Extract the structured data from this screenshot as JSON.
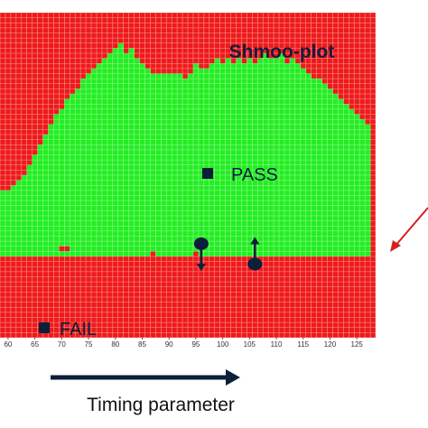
{
  "chart_data": {
    "type": "heatmap",
    "title": "Shmoo-plot",
    "xlabel": "Timing parameter",
    "legend": {
      "pass_label": "PASS",
      "fail_label": "FAIL"
    },
    "x_ticks": [
      "60",
      "65",
      "70",
      "75",
      "80",
      "85",
      "90",
      "95",
      "100",
      "105",
      "110",
      "115",
      "120",
      "125"
    ],
    "xlim": [
      59,
      128
    ],
    "grid": true,
    "colors": {
      "pass": "#22ee22",
      "fail": "#ee1a1a",
      "grid_line": "#ffffff",
      "marker": "#0b1f3a",
      "arrow": "#0b1f3a",
      "accent_arrow": "#d62020"
    },
    "rows": 64,
    "fail_band_top_row": 48,
    "pass_region_top_row_by_x": [
      [
        59,
        35
      ],
      [
        60,
        35
      ],
      [
        61,
        34
      ],
      [
        62,
        33
      ],
      [
        63,
        32
      ],
      [
        64,
        30
      ],
      [
        65,
        28
      ],
      [
        66,
        26
      ],
      [
        67,
        24
      ],
      [
        68,
        22
      ],
      [
        69,
        20
      ],
      [
        70,
        19
      ],
      [
        71,
        17
      ],
      [
        72,
        16
      ],
      [
        73,
        15
      ],
      [
        74,
        13
      ],
      [
        75,
        12
      ],
      [
        76,
        11
      ],
      [
        77,
        10
      ],
      [
        78,
        9
      ],
      [
        79,
        8
      ],
      [
        80,
        7
      ],
      [
        81,
        6
      ],
      [
        82,
        8
      ],
      [
        83,
        7
      ],
      [
        84,
        9
      ],
      [
        85,
        10
      ],
      [
        86,
        11
      ],
      [
        87,
        12
      ],
      [
        88,
        12
      ],
      [
        89,
        12
      ],
      [
        90,
        12
      ],
      [
        91,
        12
      ],
      [
        92,
        12
      ],
      [
        93,
        13
      ],
      [
        94,
        12
      ],
      [
        95,
        10
      ],
      [
        96,
        11
      ],
      [
        97,
        11
      ],
      [
        98,
        10
      ],
      [
        99,
        9
      ],
      [
        100,
        10
      ],
      [
        101,
        9
      ],
      [
        102,
        10
      ],
      [
        103,
        9
      ],
      [
        104,
        10
      ],
      [
        105,
        9
      ],
      [
        106,
        10
      ],
      [
        107,
        9
      ],
      [
        108,
        8
      ],
      [
        109,
        9
      ],
      [
        110,
        9
      ],
      [
        111,
        8
      ],
      [
        112,
        10
      ],
      [
        113,
        9
      ],
      [
        114,
        10
      ],
      [
        115,
        11
      ],
      [
        116,
        12
      ],
      [
        117,
        13
      ],
      [
        118,
        13
      ],
      [
        119,
        14
      ],
      [
        120,
        15
      ],
      [
        121,
        16
      ],
      [
        122,
        17
      ],
      [
        123,
        18
      ],
      [
        124,
        19
      ],
      [
        125,
        20
      ],
      [
        126,
        21
      ],
      [
        127,
        22
      ]
    ],
    "pass_notch_cells": [
      [
        70,
        46
      ],
      [
        71,
        46
      ],
      [
        87,
        47
      ],
      [
        95,
        47
      ]
    ],
    "marker_points": [
      {
        "x": 96,
        "row": 45,
        "direction": "down"
      },
      {
        "x": 106,
        "row": 49,
        "direction": "up"
      }
    ]
  }
}
